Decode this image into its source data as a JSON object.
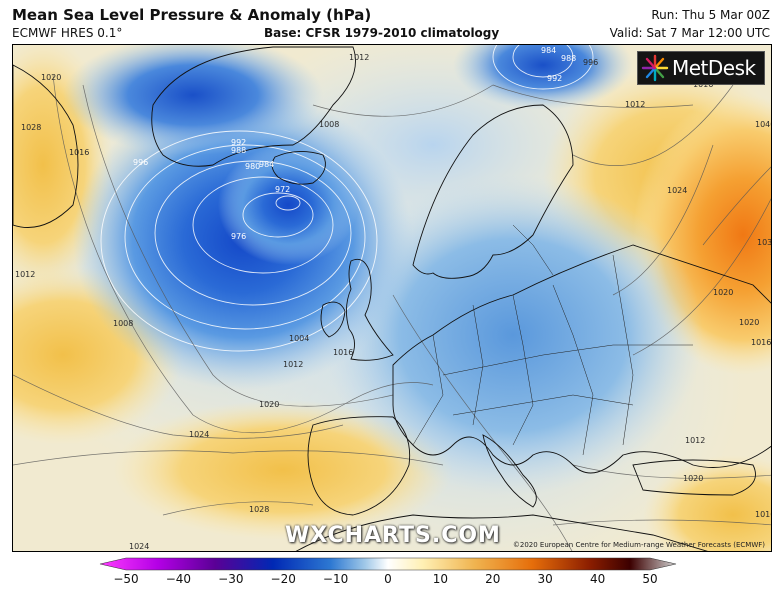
{
  "header": {
    "title": "Mean Sea Level Pressure & Anomaly (hPa)",
    "model": "ECMWF HRES 0.1°",
    "base": "Base: CFSR 1979-2010 climatology",
    "run": "Run: Thu 5 Mar 00Z",
    "valid": "Valid: Sat 7 Mar 12:00 UTC"
  },
  "branding": {
    "logo_text": "MetDesk",
    "watermark": "WXCHARTS.COM",
    "credit": "©2020 European Centre for Medium-range Weather Forecasts (ECMWF)"
  },
  "isobar_labels": {
    "l1020_nw": "1020",
    "l1028_w": "1028",
    "l1016_w": "1016",
    "l1012_w": "1012",
    "l1008_w": "1008",
    "l1012_top": "1012",
    "l1008_top": "1008",
    "l996": "996",
    "l992_ice": "992",
    "l988_ice": "988",
    "l984_ice": "984",
    "l980_ice": "980",
    "l972": "972",
    "l976": "976",
    "l1004_s": "1004",
    "l1012_s": "1012",
    "l1016_s": "1016",
    "l1020_s": "1020",
    "l1024_s": "1024",
    "l1028_s": "1028",
    "l1024_sw": "1024",
    "l984_n": "984",
    "l988_n": "988",
    "l992_n": "992",
    "l996_n": "996",
    "l1012_ne": "1012",
    "l1016_ne": "1016",
    "l1024_e": "1024",
    "l1020_e": "1020",
    "l1020_ee": "1020",
    "l1016_e": "1016",
    "l1040_e": "1040",
    "l1032_e": "1032",
    "l1020_se": "1020",
    "l1016_se": "1016",
    "l1012_sb": "1012"
  },
  "colorbar": {
    "ticks": [
      "−50",
      "−40",
      "−30",
      "−20",
      "−10",
      "0",
      "10",
      "20",
      "30",
      "40",
      "50"
    ],
    "colors": [
      "#ff3cff",
      "#b400e6",
      "#5a0096",
      "#0028b4",
      "#2d78d2",
      "#a0c8e8",
      "#ffffff",
      "#fff0b4",
      "#f0b450",
      "#e66e0a",
      "#8c1e00",
      "#3c0000",
      "#d2d2d2"
    ]
  }
}
